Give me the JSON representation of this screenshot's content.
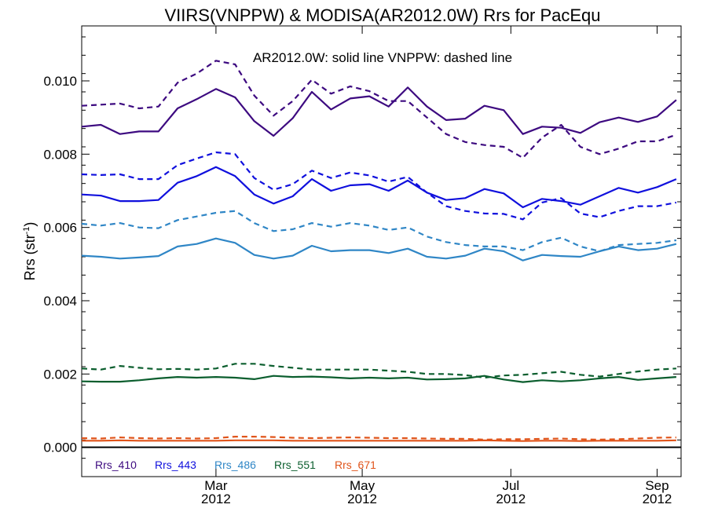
{
  "chart_data": {
    "type": "line",
    "title": "VIIRS(VNPPW) & MODISA(AR2012.0W)  Rrs for PacEqu",
    "annotation": "AR2012.0W: solid line   VNPPW: dashed line",
    "ylabel": "Rrs (str",
    "ylabel_sup": "-1",
    "ylabel_end": ")",
    "xlabel": "",
    "x_units": "days since 2012-01-01",
    "xlim": [
      0,
      250
    ],
    "ylim": [
      -0.0008,
      0.0115
    ],
    "y_ticks": [
      0.0,
      0.002,
      0.004,
      0.006,
      0.008,
      0.01
    ],
    "y_tick_labels": [
      "0.000",
      "0.002",
      "0.004",
      "0.006",
      "0.008",
      "0.010"
    ],
    "x_ticks": [
      {
        "x": 56,
        "month": "Mar",
        "year": "2012"
      },
      {
        "x": 117,
        "month": "May",
        "year": "2012"
      },
      {
        "x": 179,
        "month": "Jul",
        "year": "2012"
      },
      {
        "x": 240,
        "month": "Sep",
        "year": "2012"
      }
    ],
    "grid": false,
    "legend_position": "bottom-left",
    "x": [
      0,
      8,
      16,
      24,
      32,
      40,
      48,
      56,
      64,
      72,
      80,
      88,
      96,
      104,
      112,
      120,
      128,
      136,
      144,
      152,
      160,
      168,
      176,
      184,
      192,
      200,
      208,
      216,
      224,
      232,
      240,
      248
    ],
    "series": [
      {
        "name": "Rrs_410",
        "style": "solid",
        "color": "#3d0a80",
        "values": [
          0.00875,
          0.0088,
          0.00855,
          0.00862,
          0.00862,
          0.00925,
          0.0095,
          0.00978,
          0.00955,
          0.0089,
          0.0085,
          0.00898,
          0.0097,
          0.00922,
          0.00952,
          0.00958,
          0.0093,
          0.00982,
          0.0093,
          0.00893,
          0.00897,
          0.00932,
          0.0092,
          0.00855,
          0.00875,
          0.00872,
          0.00858,
          0.00887,
          0.009,
          0.00888,
          0.00903,
          0.00948
        ]
      },
      {
        "name": "Rrs_410 VNPPW",
        "style": "dashed",
        "color": "#3d0a80",
        "values": [
          0.00932,
          0.00935,
          0.00938,
          0.00925,
          0.0093,
          0.00995,
          0.0102,
          0.01055,
          0.01045,
          0.0096,
          0.00905,
          0.00945,
          0.01003,
          0.00965,
          0.00985,
          0.00972,
          0.00945,
          0.00945,
          0.009,
          0.00855,
          0.00833,
          0.00825,
          0.0082,
          0.0079,
          0.00845,
          0.0088,
          0.0082,
          0.008,
          0.00815,
          0.00835,
          0.00835,
          0.00853
        ]
      },
      {
        "name": "Rrs_443",
        "style": "solid",
        "color": "#1010dd",
        "values": [
          0.0069,
          0.00687,
          0.00672,
          0.00672,
          0.00675,
          0.00722,
          0.0074,
          0.00765,
          0.0074,
          0.0069,
          0.00665,
          0.00685,
          0.00732,
          0.007,
          0.00715,
          0.00718,
          0.007,
          0.00728,
          0.00695,
          0.00675,
          0.0068,
          0.00705,
          0.00693,
          0.00655,
          0.00678,
          0.00672,
          0.00662,
          0.00685,
          0.00708,
          0.00695,
          0.0071,
          0.00732
        ]
      },
      {
        "name": "Rrs_443 VNPPW",
        "style": "dashed",
        "color": "#1010dd",
        "values": [
          0.00745,
          0.00743,
          0.00745,
          0.00732,
          0.00732,
          0.0077,
          0.00788,
          0.00805,
          0.008,
          0.00735,
          0.00703,
          0.00718,
          0.00755,
          0.00735,
          0.0075,
          0.00742,
          0.00725,
          0.00738,
          0.00695,
          0.00658,
          0.00645,
          0.00638,
          0.00637,
          0.00622,
          0.00668,
          0.0068,
          0.00638,
          0.00628,
          0.00645,
          0.00658,
          0.00658,
          0.00668
        ]
      },
      {
        "name": "Rrs_486",
        "style": "solid",
        "color": "#2f86c6",
        "values": [
          0.00523,
          0.0052,
          0.00515,
          0.00518,
          0.00522,
          0.00548,
          0.00555,
          0.0057,
          0.00558,
          0.00525,
          0.00515,
          0.00523,
          0.0055,
          0.00535,
          0.00538,
          0.00538,
          0.0053,
          0.00542,
          0.0052,
          0.00515,
          0.00523,
          0.00542,
          0.00535,
          0.0051,
          0.00525,
          0.00522,
          0.0052,
          0.00535,
          0.00548,
          0.00538,
          0.00542,
          0.00555
        ]
      },
      {
        "name": "Rrs_486 VNPPW",
        "style": "dashed",
        "color": "#2f86c6",
        "values": [
          0.0061,
          0.00605,
          0.00612,
          0.006,
          0.00598,
          0.0062,
          0.0063,
          0.0064,
          0.00645,
          0.00612,
          0.0059,
          0.00595,
          0.00612,
          0.00602,
          0.00612,
          0.00605,
          0.00593,
          0.006,
          0.00575,
          0.0056,
          0.00552,
          0.00548,
          0.00548,
          0.00538,
          0.0056,
          0.00572,
          0.00548,
          0.00535,
          0.00552,
          0.00555,
          0.00558,
          0.00565
        ]
      },
      {
        "name": "Rrs_551",
        "style": "solid",
        "color": "#0b5e2e",
        "values": [
          0.0018,
          0.00179,
          0.00179,
          0.00183,
          0.00188,
          0.00192,
          0.0019,
          0.00192,
          0.0019,
          0.00186,
          0.00195,
          0.00192,
          0.00193,
          0.00191,
          0.00188,
          0.0019,
          0.00188,
          0.0019,
          0.00185,
          0.00186,
          0.00188,
          0.00195,
          0.00185,
          0.00178,
          0.00183,
          0.0018,
          0.00183,
          0.00188,
          0.00192,
          0.00184,
          0.00188,
          0.00192
        ]
      },
      {
        "name": "Rrs_551 VNPPW",
        "style": "dashed",
        "color": "#0b5e2e",
        "values": [
          0.00215,
          0.00212,
          0.00222,
          0.00217,
          0.00213,
          0.00214,
          0.00212,
          0.00215,
          0.00228,
          0.00228,
          0.00222,
          0.00217,
          0.00212,
          0.00212,
          0.00212,
          0.00212,
          0.00209,
          0.00206,
          0.002,
          0.002,
          0.00197,
          0.0019,
          0.00196,
          0.00198,
          0.00202,
          0.00206,
          0.00198,
          0.00193,
          0.002,
          0.00207,
          0.00212,
          0.00215
        ]
      },
      {
        "name": "Rrs_671",
        "style": "solid",
        "color": "#e0541a",
        "values": [
          0.00018,
          0.00018,
          0.00019,
          0.00018,
          0.00018,
          0.00018,
          0.00018,
          0.00018,
          0.00019,
          0.00019,
          0.00019,
          0.00018,
          0.00018,
          0.00018,
          0.00018,
          0.00018,
          0.00018,
          0.00018,
          0.00018,
          0.00018,
          0.00018,
          0.00019,
          0.00018,
          0.00017,
          0.00018,
          0.00018,
          0.00017,
          0.00018,
          0.00018,
          0.00018,
          0.00018,
          0.00019
        ]
      },
      {
        "name": "Rrs_671 VNPPW",
        "style": "dashed",
        "color": "#e0541a",
        "values": [
          0.00025,
          0.00024,
          0.00027,
          0.00025,
          0.00024,
          0.00025,
          0.00024,
          0.00025,
          0.00029,
          0.00029,
          0.00028,
          0.00026,
          0.00025,
          0.00026,
          0.00027,
          0.00026,
          0.00025,
          0.00025,
          0.00024,
          0.00023,
          0.00023,
          0.00021,
          0.00022,
          0.00022,
          0.00023,
          0.00024,
          0.00022,
          0.00021,
          0.00022,
          0.00024,
          0.00026,
          0.00027
        ]
      }
    ],
    "legend": [
      {
        "label": "Rrs_410",
        "color": "#3d0a80"
      },
      {
        "label": "Rrs_443",
        "color": "#1010dd"
      },
      {
        "label": "Rrs_486",
        "color": "#2f86c6"
      },
      {
        "label": "Rrs_551",
        "color": "#0b5e2e"
      },
      {
        "label": "Rrs_671",
        "color": "#e0541a"
      }
    ]
  }
}
